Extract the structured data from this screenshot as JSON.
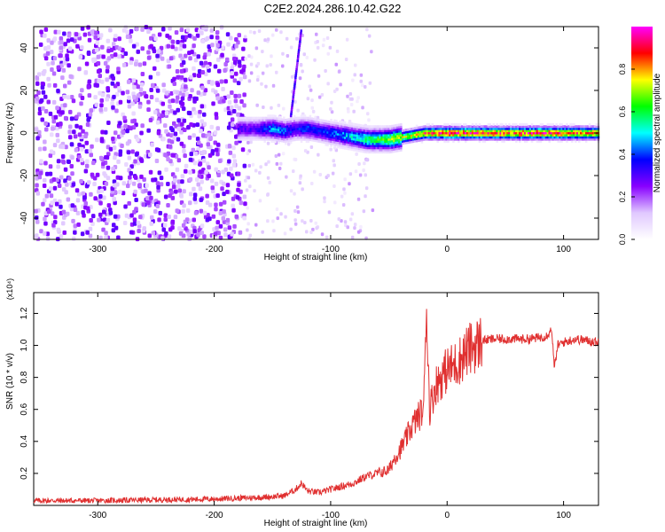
{
  "figure_title": "C2E2.2024.286.10.42.G22",
  "chart_data": [
    {
      "type": "heatmap",
      "name": "spectrogram",
      "xlabel": "Height of straight line (km)",
      "ylabel": "Frequency (Hz)",
      "xlim": [
        -355,
        130
      ],
      "ylim": [
        -50,
        50
      ],
      "x_ticks": [
        -300,
        -200,
        -100,
        0,
        100
      ],
      "y_ticks": [
        -40,
        -20,
        0,
        20,
        40
      ],
      "colorbar": {
        "label": "Normalized spectral amplitude",
        "range": [
          0,
          1
        ],
        "ticks": [
          0.0,
          0.2,
          0.4,
          0.6,
          0.8
        ],
        "colors": [
          "#ffffff",
          "#e0c8ff",
          "#8800ff",
          "#0000ff",
          "#00ffff",
          "#00ff00",
          "#ffff00",
          "#ff0000",
          "#ff00ff"
        ]
      },
      "ridge_x": [
        -180,
        -165,
        -150,
        -140,
        -130,
        -120,
        -110,
        -100,
        -90,
        -80,
        -70,
        -60,
        -50,
        -40,
        -30,
        -20,
        0,
        20,
        50,
        80,
        100,
        130
      ],
      "ridge_freq": [
        2,
        2,
        2,
        1,
        2,
        2,
        1,
        0,
        -1,
        -2,
        -3,
        -3,
        -3,
        -2,
        -1,
        0,
        0,
        0,
        0,
        0,
        0,
        0
      ],
      "ridge_amplitude": [
        0.3,
        0.3,
        0.45,
        0.4,
        0.35,
        0.4,
        0.35,
        0.4,
        0.45,
        0.5,
        0.55,
        0.6,
        0.65,
        0.7,
        0.75,
        0.85,
        0.9,
        0.9,
        0.85,
        0.9,
        0.85,
        0.8
      ],
      "noise_region_x": [
        -355,
        -175
      ]
    },
    {
      "type": "line",
      "name": "snr",
      "xlabel": "Height of straight line (km)",
      "ylabel": "SNR (10 * v/v)",
      "y_scale_label": "(x10⁴)",
      "xlim": [
        -355,
        130
      ],
      "ylim": [
        0,
        1.33
      ],
      "x_ticks": [
        -300,
        -200,
        -100,
        0,
        100
      ],
      "y_ticks": [
        0.2,
        0.4,
        0.6,
        0.8,
        1.0,
        1.2
      ],
      "line_color": "#e03030",
      "series": [
        {
          "name": "SNR",
          "x": [
            -355,
            -300,
            -250,
            -200,
            -160,
            -140,
            -130,
            -125,
            -120,
            -110,
            -100,
            -90,
            -80,
            -70,
            -60,
            -50,
            -45,
            -40,
            -35,
            -30,
            -25,
            -20,
            -18,
            -15,
            -10,
            -5,
            0,
            5,
            10,
            15,
            20,
            25,
            30,
            40,
            50,
            60,
            70,
            80,
            85,
            90,
            92,
            95,
            100,
            110,
            120,
            130
          ],
          "y": [
            0.03,
            0.03,
            0.035,
            0.04,
            0.05,
            0.06,
            0.1,
            0.14,
            0.09,
            0.08,
            0.1,
            0.12,
            0.14,
            0.18,
            0.2,
            0.22,
            0.3,
            0.35,
            0.42,
            0.5,
            0.55,
            0.6,
            1.3,
            0.6,
            0.75,
            0.8,
            0.85,
            0.87,
            0.9,
            0.95,
            0.98,
            1.0,
            1.03,
            1.04,
            1.04,
            1.04,
            1.04,
            1.05,
            1.06,
            1.1,
            0.85,
            1.0,
            1.02,
            1.04,
            1.03,
            1.02
          ]
        }
      ]
    }
  ]
}
